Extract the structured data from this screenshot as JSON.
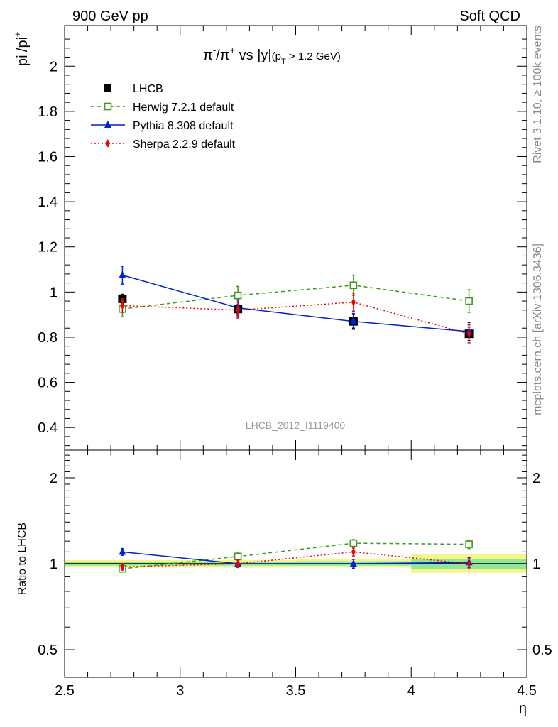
{
  "header": {
    "left": "900 GeV pp",
    "right": "Soft QCD"
  },
  "side_text": {
    "rivet": "Rivet 3.1.10, ≥ 100k events",
    "mcplots": "mcplots.cern.ch [arXiv:1306.3436]"
  },
  "chart_data": [
    {
      "type": "line",
      "panel": "main",
      "title_parts": {
        "pi": "π",
        "minus": "-",
        "slash": "/",
        "plus": "+",
        "vs": " vs |y|",
        "cut_open": "(p",
        "cut_sub": "T",
        "cut_close": " > 1.2 GeV)"
      },
      "ylabel_parts": {
        "base1": "pi",
        "sup1": "-",
        "slash": "/pi",
        "sup2": "+"
      },
      "watermark": "LHCB_2012_I1119400",
      "xlim": [
        2.5,
        4.5
      ],
      "ylim": [
        0.3,
        2.18
      ],
      "yticks": [
        0.4,
        0.6,
        0.8,
        1,
        1.2,
        1.4,
        1.6,
        1.8,
        2
      ],
      "ytick_labels": [
        "0.4",
        "0.6",
        "0.8",
        "1",
        "1.2",
        "1.4",
        "1.6",
        "1.8",
        "2"
      ],
      "x": [
        2.75,
        3.25,
        3.75,
        4.25
      ],
      "series": [
        {
          "name": "LHCB",
          "color": "#000000",
          "marker": "square",
          "line": "none",
          "values": [
            0.97,
            0.925,
            0.87,
            0.815
          ],
          "errors": [
            0.02,
            0.02,
            0.03,
            0.03
          ]
        },
        {
          "name": "Herwig 7.2.1 default",
          "color": "#3c9a1e",
          "marker": "open-square",
          "line": "dashed",
          "values": [
            0.925,
            0.985,
            1.03,
            0.96
          ],
          "errors": [
            0.035,
            0.04,
            0.045,
            0.05
          ]
        },
        {
          "name": "Pythia 8.308 default",
          "color": "#0022cc",
          "marker": "triangle",
          "line": "solid",
          "values": [
            1.075,
            0.93,
            0.87,
            0.825
          ],
          "errors": [
            0.04,
            0.035,
            0.035,
            0.04
          ]
        },
        {
          "name": "Sherpa 2.2.9 default",
          "color": "#ee0000",
          "marker": "diamond",
          "line": "dotted",
          "values": [
            0.94,
            0.92,
            0.955,
            0.815
          ],
          "errors": [
            0.03,
            0.035,
            0.04,
            0.04
          ]
        }
      ]
    },
    {
      "type": "line",
      "panel": "ratio",
      "ylabel": "Ratio to LHCB",
      "xlabel": "η",
      "xlim": [
        2.5,
        4.5
      ],
      "xticks": [
        2.5,
        3,
        3.5,
        4,
        4.5
      ],
      "xtick_labels": [
        "2.5",
        "3",
        "3.5",
        "4",
        "4.5"
      ],
      "yscale": "log",
      "ylim": [
        0.4,
        2.5
      ],
      "yticks": [
        0.5,
        1,
        2
      ],
      "ytick_labels": [
        "0.5",
        "1",
        "2"
      ],
      "bands": [
        {
          "x0": 2.5,
          "x1": 3.0,
          "stat": [
            0.985,
            1.015
          ],
          "total": [
            0.97,
            1.03
          ]
        },
        {
          "x0": 3.0,
          "x1": 3.5,
          "stat": [
            0.985,
            1.015
          ],
          "total": [
            0.97,
            1.03
          ]
        },
        {
          "x0": 3.5,
          "x1": 4.0,
          "stat": [
            0.985,
            1.02
          ],
          "total": [
            0.97,
            1.035
          ]
        },
        {
          "x0": 4.0,
          "x1": 4.5,
          "stat": [
            0.96,
            1.04
          ],
          "total": [
            0.93,
            1.08
          ]
        }
      ],
      "x": [
        2.75,
        3.25,
        3.75,
        4.25
      ],
      "series": [
        {
          "name": "Herwig 7.2.1 default",
          "color": "#3c9a1e",
          "marker": "open-square",
          "line": "dashed",
          "values": [
            0.96,
            1.06,
            1.18,
            1.17
          ],
          "errors": [
            0.025,
            0.03,
            0.035,
            0.04
          ]
        },
        {
          "name": "Pythia 8.308 default",
          "color": "#0022cc",
          "marker": "triangle",
          "line": "solid",
          "values": [
            1.1,
            1.0,
            1.0,
            1.01
          ],
          "errors": [
            0.03,
            0.03,
            0.035,
            0.04
          ]
        },
        {
          "name": "Sherpa 2.2.9 default",
          "color": "#ee0000",
          "marker": "diamond",
          "line": "dotted",
          "values": [
            0.975,
            1.0,
            1.1,
            1.0
          ],
          "errors": [
            0.025,
            0.03,
            0.035,
            0.04
          ]
        }
      ]
    }
  ]
}
